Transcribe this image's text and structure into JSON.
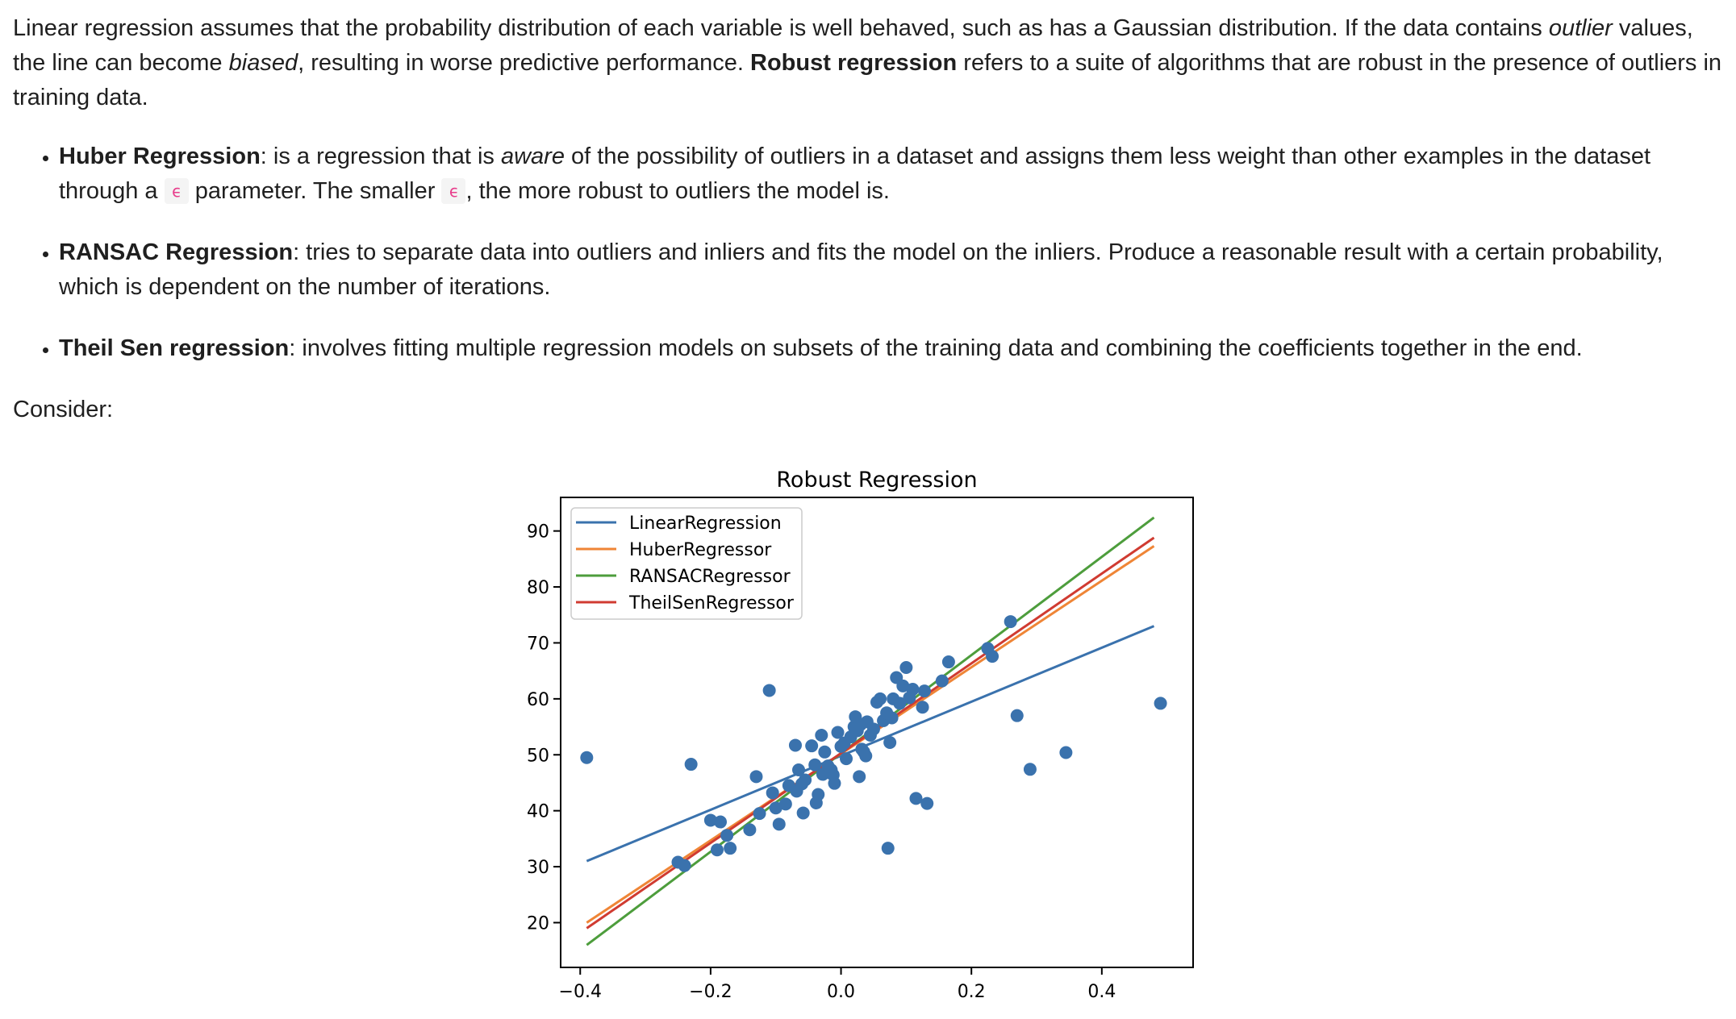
{
  "intro": {
    "t1": "Linear regression assumes that the probability distribution of each variable is well behaved, such as has a Gaussian distribution. If the data contains ",
    "outlier": "outlier",
    "t2": " values, the line can become ",
    "biased": "biased",
    "t3": ", resulting in worse predictive performance. ",
    "robust_bold": "Robust regression",
    "t4": " refers to a suite of algorithms that are robust in the presence of outliers in training data."
  },
  "bullets": {
    "huber": {
      "title": "Huber Regression",
      "t1": ": is a regression that is ",
      "aware": "aware",
      "t2": " of the possibility of outliers in a dataset and assigns them less weight than other examples in the dataset through a ",
      "eps1": "ϵ",
      "t3": " parameter. The smaller ",
      "eps2": "ϵ",
      "t4": ", the more robust to outliers the model is."
    },
    "ransac": {
      "title": "RANSAC Regression",
      "text": ": tries to separate data into outliers and inliers and fits the model on the inliers. Produce a reasonable result with a certain probability, which is dependent on the number of iterations."
    },
    "theil": {
      "title": "Theil Sen regression",
      "text": ": involves fitting multiple regression models on subsets of the training data and combining the coefficients together in the end."
    }
  },
  "consider": "Consider:",
  "chart_data": {
    "type": "scatter",
    "title": "Robust Regression",
    "xlabel": "",
    "ylabel": "",
    "xlim": [
      -0.43,
      0.54
    ],
    "ylim": [
      12,
      96
    ],
    "xticks": [
      -0.4,
      -0.2,
      0.0,
      0.2,
      0.4
    ],
    "xtick_labels": [
      "−0.4",
      "−0.2",
      "0.0",
      "0.2",
      "0.4"
    ],
    "yticks": [
      20,
      30,
      40,
      50,
      60,
      70,
      80,
      90
    ],
    "grid": false,
    "legend": "top-left",
    "point_color": "#3a72ad",
    "points": [
      [
        -0.39,
        49.5
      ],
      [
        -0.23,
        48.3
      ],
      [
        -0.25,
        30.8
      ],
      [
        -0.24,
        30.2
      ],
      [
        -0.2,
        38.3
      ],
      [
        -0.19,
        33.0
      ],
      [
        -0.185,
        38.0
      ],
      [
        -0.175,
        35.6
      ],
      [
        -0.17,
        33.3
      ],
      [
        -0.14,
        36.6
      ],
      [
        -0.13,
        46.1
      ],
      [
        -0.125,
        39.5
      ],
      [
        -0.11,
        61.5
      ],
      [
        -0.105,
        43.2
      ],
      [
        -0.1,
        40.5
      ],
      [
        -0.095,
        37.6
      ],
      [
        -0.085,
        41.2
      ],
      [
        -0.08,
        44.5
      ],
      [
        -0.07,
        51.7
      ],
      [
        -0.068,
        43.5
      ],
      [
        -0.065,
        47.3
      ],
      [
        -0.06,
        44.8
      ],
      [
        -0.058,
        39.6
      ],
      [
        -0.055,
        45.5
      ],
      [
        -0.045,
        51.6
      ],
      [
        -0.04,
        48.2
      ],
      [
        -0.038,
        41.4
      ],
      [
        -0.035,
        42.9
      ],
      [
        -0.03,
        53.5
      ],
      [
        -0.028,
        46.5
      ],
      [
        -0.025,
        50.5
      ],
      [
        -0.02,
        48.0
      ],
      [
        -0.018,
        46.8
      ],
      [
        -0.015,
        47.3
      ],
      [
        -0.012,
        46.4
      ],
      [
        -0.01,
        44.9
      ],
      [
        -0.005,
        54.0
      ],
      [
        0.0,
        51.5
      ],
      [
        0.005,
        52.1
      ],
      [
        0.008,
        49.3
      ],
      [
        0.015,
        53.2
      ],
      [
        0.02,
        55.0
      ],
      [
        0.022,
        56.8
      ],
      [
        0.025,
        54.3
      ],
      [
        0.028,
        46.1
      ],
      [
        0.03,
        55.4
      ],
      [
        0.032,
        51.0
      ],
      [
        0.035,
        50.5
      ],
      [
        0.038,
        49.8
      ],
      [
        0.04,
        55.9
      ],
      [
        0.045,
        53.5
      ],
      [
        0.05,
        54.6
      ],
      [
        0.055,
        59.4
      ],
      [
        0.06,
        60.0
      ],
      [
        0.065,
        56.1
      ],
      [
        0.07,
        57.5
      ],
      [
        0.072,
        33.3
      ],
      [
        0.075,
        52.2
      ],
      [
        0.078,
        56.6
      ],
      [
        0.08,
        60.0
      ],
      [
        0.085,
        63.8
      ],
      [
        0.09,
        59.2
      ],
      [
        0.095,
        62.3
      ],
      [
        0.1,
        65.6
      ],
      [
        0.105,
        60.2
      ],
      [
        0.11,
        61.7
      ],
      [
        0.115,
        42.2
      ],
      [
        0.125,
        58.5
      ],
      [
        0.128,
        61.4
      ],
      [
        0.132,
        41.3
      ],
      [
        0.155,
        63.2
      ],
      [
        0.165,
        66.6
      ],
      [
        0.225,
        69.0
      ],
      [
        0.232,
        67.6
      ],
      [
        0.26,
        73.8
      ],
      [
        0.27,
        57.0
      ],
      [
        0.29,
        47.4
      ],
      [
        0.345,
        50.4
      ],
      [
        0.49,
        59.2
      ]
    ],
    "series": [
      {
        "name": "LinearRegression",
        "color": "#3a72ad",
        "x": [
          -0.39,
          0.48
        ],
        "y": [
          31.0,
          73.0
        ]
      },
      {
        "name": "HuberRegressor",
        "color": "#ef8536",
        "x": [
          -0.39,
          0.48
        ],
        "y": [
          20.0,
          87.3
        ]
      },
      {
        "name": "RANSACRegressor",
        "color": "#4d9d3c",
        "x": [
          -0.39,
          0.48
        ],
        "y": [
          16.0,
          92.4
        ]
      },
      {
        "name": "TheilSenRegressor",
        "color": "#d03b31",
        "x": [
          -0.39,
          0.48
        ],
        "y": [
          19.0,
          88.8
        ]
      }
    ]
  }
}
